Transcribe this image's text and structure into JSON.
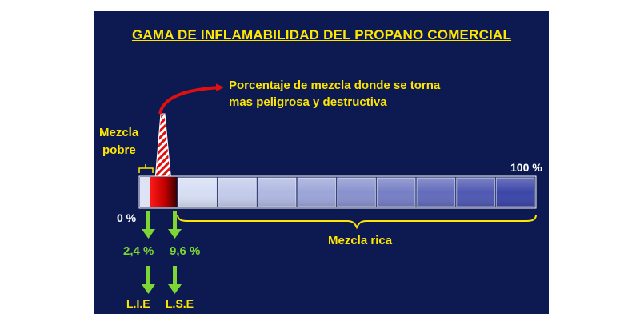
{
  "title": "GAMA DE INFLAMABILIDAD DEL PROPANO COMERCIAL",
  "note": {
    "line1": "Porcentaje de mezcla donde se torna",
    "line2": "mas peligrosa y destructiva"
  },
  "lean_mixture": {
    "line1": "Mezcla",
    "line2": "pobre"
  },
  "rich_mixture": "Mezcla rica",
  "scale": {
    "min_label": "0 %",
    "max_label": "100 %"
  },
  "limits": {
    "lower": {
      "value": "2,4 %",
      "abbr": "L.I.E"
    },
    "upper": {
      "value": "9,6 %",
      "abbr": "L.S.E"
    }
  },
  "colors": {
    "background": "#0d1a52",
    "title": "#ffe600",
    "flammable": "#e01010",
    "arrow_red": "#e01010",
    "arrow_green": "#7dd633"
  }
}
